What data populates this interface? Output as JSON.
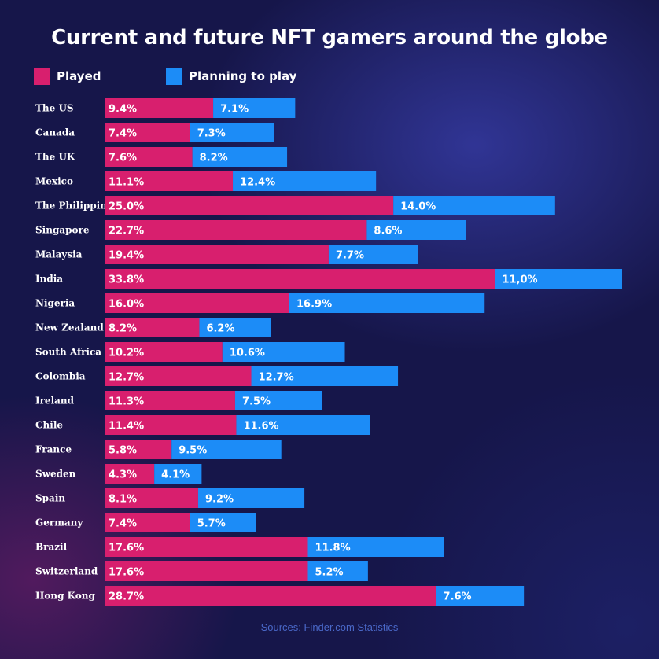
{
  "chart_data": {
    "type": "bar",
    "orientation": "horizontal",
    "stacked": true,
    "title": "Current and future NFT gamers around the globe",
    "categories": [
      "The US",
      "Canada",
      "The UK",
      "Mexico",
      "The Philippines",
      "Singapore",
      "Malaysia",
      "India",
      "Nigeria",
      "New Zealand",
      "South Africa",
      "Colombia",
      "Ireland",
      "Chile",
      "France",
      "Sweden",
      "Spain",
      "Germany",
      "Brazil",
      "Switzerland",
      "Hong Kong"
    ],
    "series": [
      {
        "name": "Played",
        "color": "#d81f6e",
        "values": [
          9.4,
          7.4,
          7.6,
          11.1,
          25.0,
          22.7,
          19.4,
          33.8,
          16.0,
          8.2,
          10.2,
          12.7,
          11.3,
          11.4,
          5.8,
          4.3,
          8.1,
          7.4,
          17.6,
          17.6,
          28.7
        ],
        "labels": [
          "9.4%",
          "7.4%",
          "7.6%",
          "11.1%",
          "25.0%",
          "22.7%",
          "19.4%",
          "33.8%",
          "16.0%",
          "8.2%",
          "10.2%",
          "12.7%",
          "11.3%",
          "11.4%",
          "5.8%",
          "4.3%",
          "8.1%",
          "7.4%",
          "17.6%",
          "17.6%",
          "28.7%"
        ]
      },
      {
        "name": "Planning to play",
        "color": "#1c8cf7",
        "values": [
          7.1,
          7.3,
          8.2,
          12.4,
          14.0,
          8.6,
          7.7,
          11.0,
          16.9,
          6.2,
          10.6,
          12.7,
          7.5,
          11.6,
          9.5,
          4.1,
          9.2,
          5.7,
          11.8,
          5.2,
          7.6
        ],
        "labels": [
          "7.1%",
          "7.3%",
          "8.2%",
          "12.4%",
          "14.0%",
          "8.6%",
          "7.7%",
          "11,0%",
          "16.9%",
          "6.2%",
          "10.6%",
          "12.7%",
          "7.5%",
          "11.6%",
          "9.5%",
          "4.1%",
          "9.2%",
          "5.7%",
          "11.8%",
          "5.2%",
          "7.6%"
        ]
      }
    ],
    "xlim": [
      0,
      44.8
    ],
    "grid": false,
    "legend_position": "top-left"
  },
  "legend": {
    "played_label": "Played",
    "planning_label": "Planning to play"
  },
  "source": "Sources: Finder.com Statistics",
  "colors": {
    "background": "#16164a",
    "played": "#d81f6e",
    "planning": "#1c8cf7",
    "source_text": "#4a68c8"
  }
}
